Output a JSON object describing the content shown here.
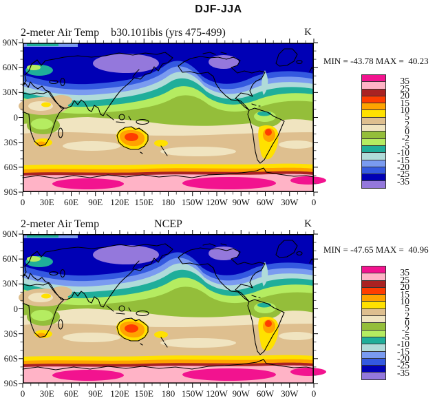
{
  "figure_title": "DJF-JJA",
  "panels": [
    {
      "left_title": "2-meter Air Temp",
      "center_title": "b30.101ibis (yrs 475-499)",
      "units_label": "K",
      "stats_text": "MIN = -43.78 MAX =  40.23"
    },
    {
      "left_title": "2-meter Air Temp",
      "center_title": "NCEP",
      "units_label": "K",
      "stats_text": "MIN = -47.65 MAX =  40.96"
    }
  ],
  "axes": {
    "lat_ticks": [
      "90N",
      "60N",
      "30N",
      "0",
      "30S",
      "60S",
      "90S"
    ],
    "lon_ticks": [
      "0",
      "30E",
      "60E",
      "90E",
      "120E",
      "150E",
      "180",
      "150W",
      "120W",
      "90W",
      "60W",
      "30W",
      "0"
    ]
  },
  "colorbar": {
    "labels": [
      "35",
      "25",
      "20",
      "15",
      "10",
      "5",
      "2",
      "0",
      "-2",
      "-5",
      "-10",
      "-15",
      "-20",
      "-25",
      "-35"
    ],
    "colors": [
      "#F2138F",
      "#FFB3C6",
      "#AA2222",
      "#FF3D00",
      "#FFA300",
      "#FFE100",
      "#DEBF8F",
      "#F0E4C0",
      "#94BE3A",
      "#B5EC61",
      "#1FAE9A",
      "#B0DBD9",
      "#7A9BF0",
      "#3459E0",
      "#0000B5",
      "#9478DC"
    ]
  },
  "chart_data": [
    {
      "type": "heatmap",
      "title": "2-meter Air Temp",
      "dataset": "b30.101ibis (yrs 475-499)",
      "season_difference": "DJF-JJA",
      "units": "K",
      "min": -43.78,
      "max": 40.23,
      "contour_levels": [
        -35,
        -25,
        -20,
        -15,
        -10,
        -5,
        -2,
        0,
        2,
        5,
        10,
        15,
        20,
        25,
        35
      ],
      "palette_top_to_bottom": [
        "#F2138F",
        "#FFB3C6",
        "#AA2222",
        "#FF3D00",
        "#FFA300",
        "#FFE100",
        "#DEBF8F",
        "#F0E4C0",
        "#94BE3A",
        "#B5EC61",
        "#1FAE9A",
        "#B0DBD9",
        "#7A9BF0",
        "#3459E0",
        "#0000B5",
        "#9478DC"
      ],
      "x_axis": {
        "ticks": [
          "0",
          "30E",
          "60E",
          "90E",
          "120E",
          "150E",
          "180",
          "150W",
          "120W",
          "90W",
          "60W",
          "30W",
          "0"
        ]
      },
      "y_axis": {
        "ticks": [
          "90N",
          "60N",
          "30N",
          "0",
          "30S",
          "60S",
          "90S"
        ]
      },
      "legend_position": "right",
      "projection": "cylindrical, longitude 0E to 360E"
    },
    {
      "type": "heatmap",
      "title": "2-meter Air Temp",
      "dataset": "NCEP",
      "season_difference": "DJF-JJA",
      "units": "K",
      "min": -47.65,
      "max": 40.96,
      "contour_levels": [
        -35,
        -25,
        -20,
        -15,
        -10,
        -5,
        -2,
        0,
        2,
        5,
        10,
        15,
        20,
        25,
        35
      ],
      "palette_top_to_bottom": [
        "#F2138F",
        "#FFB3C6",
        "#AA2222",
        "#FF3D00",
        "#FFA300",
        "#FFE100",
        "#DEBF8F",
        "#F0E4C0",
        "#94BE3A",
        "#B5EC61",
        "#1FAE9A",
        "#B0DBD9",
        "#7A9BF0",
        "#3459E0",
        "#0000B5",
        "#9478DC"
      ],
      "x_axis": {
        "ticks": [
          "0",
          "30E",
          "60E",
          "90E",
          "120E",
          "150E",
          "180",
          "150W",
          "120W",
          "90W",
          "60W",
          "30W",
          "0"
        ]
      },
      "y_axis": {
        "ticks": [
          "90N",
          "60N",
          "30N",
          "0",
          "30S",
          "60S",
          "90S"
        ]
      },
      "legend_position": "right",
      "projection": "cylindrical, longitude 0E to 360E"
    }
  ]
}
